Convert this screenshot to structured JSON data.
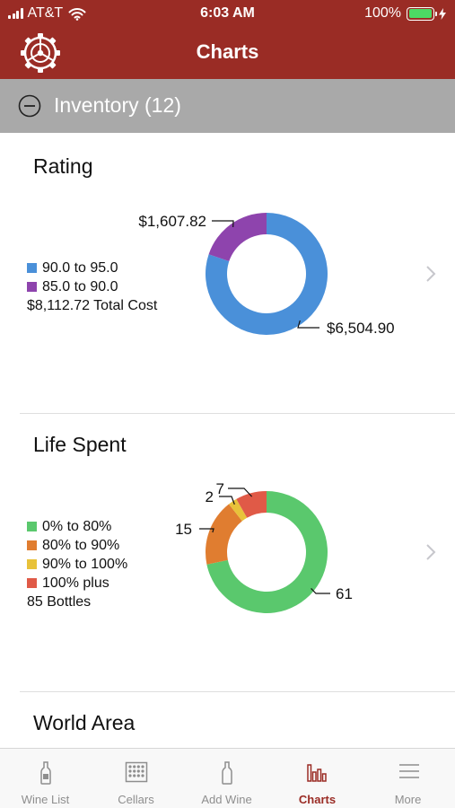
{
  "status_bar": {
    "carrier": "AT&T",
    "time": "6:03 AM",
    "battery": "100%",
    "battery_level": 1.0
  },
  "nav": {
    "title": "Charts",
    "settings_icon": "gear-icon"
  },
  "inventory": {
    "label": "Inventory (12)",
    "toggle_icon": "minus-circle-icon"
  },
  "sections": [
    {
      "title": "Rating",
      "summary": "$8,112.72 Total Cost"
    },
    {
      "title": "Life Spent",
      "summary": "85 Bottles"
    },
    {
      "title": "World Area"
    }
  ],
  "chart_data": [
    {
      "type": "pie",
      "title": "Rating",
      "categories": [
        "90.0 to 95.0",
        "85.0 to 90.0"
      ],
      "values": [
        6504.9,
        1607.82
      ],
      "data_labels": [
        "$6,504.90",
        "$1,607.82"
      ],
      "colors": [
        "#4a90d9",
        "#8e44ad"
      ],
      "legend": "left"
    },
    {
      "type": "pie",
      "title": "Life Spent",
      "categories": [
        "0% to 80%",
        "80% to 90%",
        "90% to 100%",
        "100% plus"
      ],
      "values": [
        61,
        15,
        2,
        7
      ],
      "data_labels": [
        "61",
        "15",
        "2",
        "7"
      ],
      "colors": [
        "#5ac86d",
        "#e07d30",
        "#e8c23a",
        "#e05a47"
      ],
      "legend": "left"
    }
  ],
  "tabs": [
    {
      "label": "Wine List",
      "icon": "bottle-icon"
    },
    {
      "label": "Cellars",
      "icon": "cellar-rack-icon"
    },
    {
      "label": "Add Wine",
      "icon": "add-bottle-icon"
    },
    {
      "label": "Charts",
      "icon": "bar-chart-icon",
      "active": true
    },
    {
      "label": "More",
      "icon": "menu-icon"
    }
  ]
}
